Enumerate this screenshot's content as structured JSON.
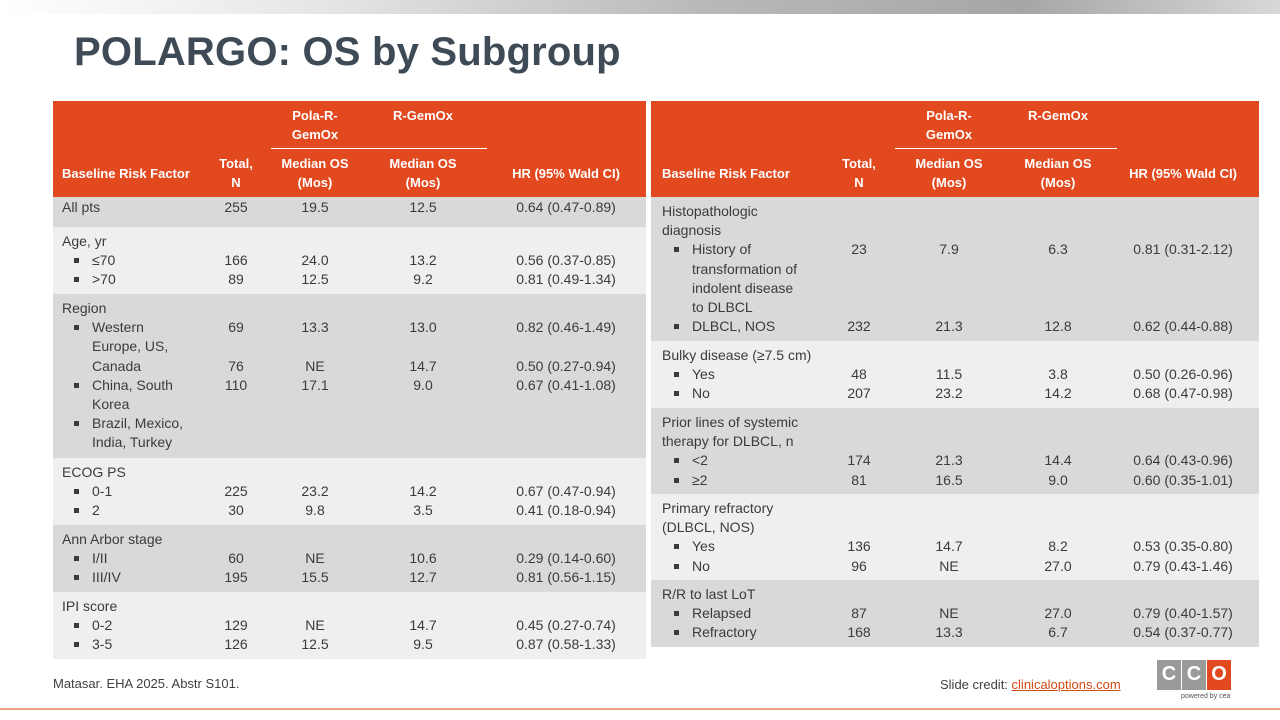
{
  "title": "POLARGO: OS by Subgroup",
  "header": {
    "risk": "Baseline Risk Factor",
    "total": "Total, N",
    "pola": "Pola-R-GemOx",
    "rgemox": "R-GemOx",
    "median_pola": "Median OS (Mos)",
    "median_r": "Median OS (Mos)",
    "hr": "HR (95% Wald CI)"
  },
  "left": {
    "all": {
      "label": "All pts",
      "n": "255",
      "pola": "19.5",
      "r": "12.5",
      "hr": "0.64 (0.47-0.89)"
    },
    "age": {
      "label": "Age, yr",
      "a": {
        "label": "≤70",
        "n": "166",
        "pola": "24.0",
        "r": "13.2",
        "hr": "0.56 (0.37-0.85)"
      },
      "b": {
        "label": ">70",
        "n": "89",
        "pola": "12.5",
        "r": "9.2",
        "hr": "0.81 (0.49-1.34)"
      }
    },
    "region": {
      "label": "Region",
      "a": {
        "l1": "Western",
        "l2": "Europe, US,",
        "l3": "Canada",
        "n": "69",
        "pola": "13.3",
        "r": "13.0",
        "hr": "0.82 (0.46-1.49)"
      },
      "b": {
        "l1": "China, South",
        "l2": "Korea",
        "n": "76",
        "pola": "NE",
        "r": "14.7",
        "hr": "0.50 (0.27-0.94)"
      },
      "c": {
        "l1": "Brazil, Mexico,",
        "l2": "India, Turkey",
        "n": "110",
        "pola": "17.1",
        "r": "9.0",
        "hr": "0.67 (0.41-1.08)"
      }
    },
    "ecog": {
      "label": "ECOG PS",
      "a": {
        "label": "0-1",
        "n": "225",
        "pola": "23.2",
        "r": "14.2",
        "hr": "0.67 (0.47-0.94)"
      },
      "b": {
        "label": "2",
        "n": "30",
        "pola": "9.8",
        "r": "3.5",
        "hr": "0.41 (0.18-0.94)"
      }
    },
    "ann": {
      "label": "Ann Arbor stage",
      "a": {
        "label": "I/II",
        "n": "60",
        "pola": "NE",
        "r": "10.6",
        "hr": "0.29 (0.14-0.60)"
      },
      "b": {
        "label": "III/IV",
        "n": "195",
        "pola": "15.5",
        "r": "12.7",
        "hr": "0.81 (0.56-1.15)"
      }
    },
    "ipi": {
      "label": "IPI score",
      "a": {
        "label": "0-2",
        "n": "129",
        "pola": "NE",
        "r": "14.7",
        "hr": "0.45 (0.27-0.74)"
      },
      "b": {
        "label": "3-5",
        "n": "126",
        "pola": "12.5",
        "r": "9.5",
        "hr": "0.87 (0.58-1.33)"
      }
    }
  },
  "right": {
    "histo": {
      "l1": "Histopathologic",
      "l2": "diagnosis",
      "a": {
        "l1": "History of",
        "l2": "transformation of",
        "l3": "indolent disease",
        "l4": "to DLBCL",
        "n": "23",
        "pola": "7.9",
        "r": "6.3",
        "hr": "0.81 (0.31-2.12)"
      },
      "b": {
        "label": "DLBCL, NOS",
        "n": "232",
        "pola": "21.3",
        "r": "12.8",
        "hr": "0.62 (0.44-0.88)"
      }
    },
    "bulky": {
      "label": "Bulky disease (≥7.5 cm)",
      "a": {
        "label": "Yes",
        "n": "48",
        "pola": "11.5",
        "r": "3.8",
        "hr": "0.50 (0.26-0.96)"
      },
      "b": {
        "label": "No",
        "n": "207",
        "pola": "23.2",
        "r": "14.2",
        "hr": "0.68 (0.47-0.98)"
      }
    },
    "prior": {
      "l1": "Prior lines of systemic",
      "l2": "therapy for DLBCL, n",
      "a": {
        "label": "<2",
        "n": "174",
        "pola": "21.3",
        "r": "14.4",
        "hr": "0.64 (0.43-0.96)"
      },
      "b": {
        "label": "≥2",
        "n": "81",
        "pola": "16.5",
        "r": "9.0",
        "hr": "0.60 (0.35-1.01)"
      }
    },
    "primary": {
      "l1": "Primary refractory",
      "l2": "(DLBCL, NOS)",
      "a": {
        "label": "Yes",
        "n": "136",
        "pola": "14.7",
        "r": "8.2",
        "hr": "0.53 (0.35-0.80)"
      },
      "b": {
        "label": "No",
        "n": "96",
        "pola": "NE",
        "r": "27.0",
        "hr": "0.79 (0.43-1.46)"
      }
    },
    "rr": {
      "label": "R/R to last LoT",
      "a": {
        "label": "Relapsed",
        "n": "87",
        "pola": "NE",
        "r": "27.0",
        "hr": "0.79 (0.40-1.57)"
      },
      "b": {
        "label": "Refractory",
        "n": "168",
        "pola": "13.3",
        "r": "6.7",
        "hr": "0.54 (0.37-0.77)"
      }
    }
  },
  "footer": {
    "citation": "Matasar. EHA 2025. Abstr S101.",
    "credit_prefix": "Slide credit: ",
    "credit_link": "clinicaloptions.com",
    "logo": "CCO",
    "logo_sub": "powered by cea"
  },
  "colors": {
    "accent": "#e2491f",
    "title": "#3e4a56",
    "row_gray": "#d9d9d9",
    "row_light": "#efefef"
  }
}
